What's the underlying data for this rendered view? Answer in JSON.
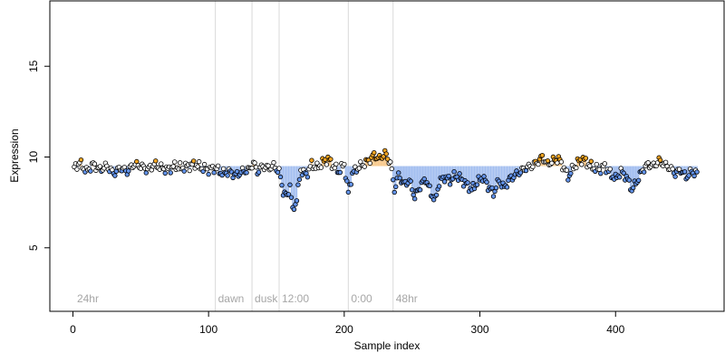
{
  "chart_data": {
    "type": "scatter",
    "xlabel": "Sample index",
    "ylabel": "Expression",
    "xlim": [
      -17,
      480
    ],
    "ylim": [
      1.5,
      18.6
    ],
    "x_ticks": [
      0,
      100,
      200,
      300,
      400
    ],
    "y_ticks": [
      5,
      10,
      15
    ],
    "baseline": 9.5,
    "section_markers": [
      {
        "x": 105,
        "label": "dawn"
      },
      {
        "x": 132,
        "label": "dusk"
      },
      {
        "x": 152,
        "label": "12:00"
      },
      {
        "x": 203,
        "label": "0:00"
      },
      {
        "x": 236,
        "label": "48hr"
      }
    ],
    "start_label": "24hr",
    "colors": {
      "above": "#f5a623",
      "above_bar": "#f8c98c",
      "below": "#6495ed",
      "below_bar": "#a4bff0",
      "point_edge": "#000000",
      "marker_line": "#d9d9d9",
      "marker_text": "#a6a6a6"
    },
    "point_x_range": [
      1,
      460
    ],
    "points": [
      {
        "x": 1,
        "y": 9.4
      },
      {
        "x": 5,
        "y": 9.7
      },
      {
        "x": 10,
        "y": 9.2
      },
      {
        "x": 15,
        "y": 9.6
      },
      {
        "x": 20,
        "y": 9.3
      },
      {
        "x": 25,
        "y": 9.5
      },
      {
        "x": 30,
        "y": 9.1
      },
      {
        "x": 35,
        "y": 9.4
      },
      {
        "x": 40,
        "y": 9.2
      },
      {
        "x": 45,
        "y": 9.6
      },
      {
        "x": 50,
        "y": 9.5
      },
      {
        "x": 55,
        "y": 9.3
      },
      {
        "x": 60,
        "y": 9.6
      },
      {
        "x": 65,
        "y": 9.4
      },
      {
        "x": 70,
        "y": 9.3
      },
      {
        "x": 75,
        "y": 9.5
      },
      {
        "x": 80,
        "y": 9.4
      },
      {
        "x": 85,
        "y": 9.5
      },
      {
        "x": 90,
        "y": 9.6
      },
      {
        "x": 95,
        "y": 9.4
      },
      {
        "x": 100,
        "y": 9.3
      },
      {
        "x": 105,
        "y": 9.4
      },
      {
        "x": 110,
        "y": 9.1
      },
      {
        "x": 115,
        "y": 9.2
      },
      {
        "x": 120,
        "y": 9.0
      },
      {
        "x": 125,
        "y": 9.2
      },
      {
        "x": 130,
        "y": 9.3
      },
      {
        "x": 133,
        "y": 9.7
      },
      {
        "x": 136,
        "y": 9.2
      },
      {
        "x": 140,
        "y": 9.5
      },
      {
        "x": 144,
        "y": 9.4
      },
      {
        "x": 148,
        "y": 9.5
      },
      {
        "x": 152,
        "y": 9.2
      },
      {
        "x": 155,
        "y": 8.1
      },
      {
        "x": 158,
        "y": 7.8
      },
      {
        "x": 160,
        "y": 8.5
      },
      {
        "x": 162,
        "y": 7.0
      },
      {
        "x": 165,
        "y": 7.7
      },
      {
        "x": 168,
        "y": 9.3
      },
      {
        "x": 172,
        "y": 9.0
      },
      {
        "x": 176,
        "y": 9.6
      },
      {
        "x": 180,
        "y": 9.4
      },
      {
        "x": 184,
        "y": 9.7
      },
      {
        "x": 188,
        "y": 9.9
      },
      {
        "x": 192,
        "y": 9.5
      },
      {
        "x": 196,
        "y": 9.2
      },
      {
        "x": 200,
        "y": 9.6
      },
      {
        "x": 203,
        "y": 8.0
      },
      {
        "x": 206,
        "y": 9.1
      },
      {
        "x": 210,
        "y": 9.4
      },
      {
        "x": 214,
        "y": 9.6
      },
      {
        "x": 218,
        "y": 9.8
      },
      {
        "x": 222,
        "y": 10.1
      },
      {
        "x": 226,
        "y": 9.9
      },
      {
        "x": 230,
        "y": 10.2
      },
      {
        "x": 234,
        "y": 9.7
      },
      {
        "x": 237,
        "y": 8.2
      },
      {
        "x": 240,
        "y": 9.0
      },
      {
        "x": 244,
        "y": 8.5
      },
      {
        "x": 248,
        "y": 8.7
      },
      {
        "x": 252,
        "y": 7.8
      },
      {
        "x": 256,
        "y": 8.4
      },
      {
        "x": 260,
        "y": 8.8
      },
      {
        "x": 264,
        "y": 8.0
      },
      {
        "x": 267,
        "y": 7.6
      },
      {
        "x": 270,
        "y": 8.6
      },
      {
        "x": 274,
        "y": 8.9
      },
      {
        "x": 278,
        "y": 8.7
      },
      {
        "x": 282,
        "y": 9.0
      },
      {
        "x": 286,
        "y": 8.8
      },
      {
        "x": 290,
        "y": 8.5
      },
      {
        "x": 294,
        "y": 8.2
      },
      {
        "x": 298,
        "y": 8.6
      },
      {
        "x": 302,
        "y": 8.9
      },
      {
        "x": 306,
        "y": 8.4
      },
      {
        "x": 310,
        "y": 8.0
      },
      {
        "x": 314,
        "y": 8.7
      },
      {
        "x": 318,
        "y": 8.3
      },
      {
        "x": 322,
        "y": 8.8
      },
      {
        "x": 326,
        "y": 9.0
      },
      {
        "x": 330,
        "y": 9.2
      },
      {
        "x": 334,
        "y": 9.4
      },
      {
        "x": 338,
        "y": 9.5
      },
      {
        "x": 342,
        "y": 9.7
      },
      {
        "x": 346,
        "y": 10.0
      },
      {
        "x": 350,
        "y": 9.6
      },
      {
        "x": 354,
        "y": 9.8
      },
      {
        "x": 358,
        "y": 9.9
      },
      {
        "x": 362,
        "y": 9.4
      },
      {
        "x": 365,
        "y": 8.9
      },
      {
        "x": 368,
        "y": 9.3
      },
      {
        "x": 372,
        "y": 9.7
      },
      {
        "x": 376,
        "y": 9.9
      },
      {
        "x": 380,
        "y": 9.6
      },
      {
        "x": 384,
        "y": 9.4
      },
      {
        "x": 388,
        "y": 9.3
      },
      {
        "x": 392,
        "y": 9.5
      },
      {
        "x": 396,
        "y": 9.1
      },
      {
        "x": 400,
        "y": 8.8
      },
      {
        "x": 404,
        "y": 9.2
      },
      {
        "x": 408,
        "y": 8.9
      },
      {
        "x": 412,
        "y": 8.2
      },
      {
        "x": 416,
        "y": 8.7
      },
      {
        "x": 420,
        "y": 9.3
      },
      {
        "x": 424,
        "y": 9.6
      },
      {
        "x": 428,
        "y": 9.5
      },
      {
        "x": 432,
        "y": 9.8
      },
      {
        "x": 436,
        "y": 9.6
      },
      {
        "x": 440,
        "y": 9.4
      },
      {
        "x": 444,
        "y": 9.1
      },
      {
        "x": 448,
        "y": 9.3
      },
      {
        "x": 452,
        "y": 8.9
      },
      {
        "x": 456,
        "y": 9.2
      },
      {
        "x": 460,
        "y": 9.1
      }
    ]
  }
}
